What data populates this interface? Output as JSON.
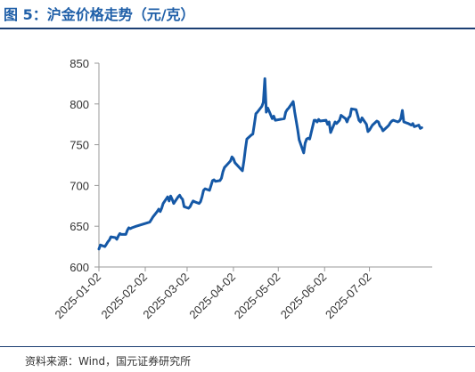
{
  "header": {
    "title": "图 5：沪金价格走势（元/克）"
  },
  "footer": {
    "source": "资料来源：Wind，国元证券研究所"
  },
  "colors": {
    "title": "#1f5fa8",
    "line": "#1558a6",
    "rule": "#1c3f73",
    "axis": "#999999"
  },
  "chart_data": {
    "type": "line",
    "title": "",
    "xlabel": "",
    "ylabel": "",
    "ylim": [
      600,
      850
    ],
    "yticks": [
      600,
      650,
      700,
      750,
      800,
      850
    ],
    "xlim": [
      "2025-01-02",
      "2025-08-13"
    ],
    "xticks": [
      "2025-01-02",
      "2025-02-02",
      "2025-03-02",
      "2025-04-02",
      "2025-05-02",
      "2025-06-02",
      "2025-07-02"
    ],
    "grid": false,
    "legend": "none",
    "series": [
      {
        "values": [
          [
            "2025-01-02",
            622
          ],
          [
            "2025-01-03",
            627
          ],
          [
            "2025-01-06",
            625
          ],
          [
            "2025-01-07",
            628
          ],
          [
            "2025-01-08",
            631
          ],
          [
            "2025-01-09",
            633
          ],
          [
            "2025-01-10",
            637
          ],
          [
            "2025-01-13",
            636
          ],
          [
            "2025-01-14",
            634
          ],
          [
            "2025-01-15",
            638
          ],
          [
            "2025-01-16",
            641
          ],
          [
            "2025-01-17",
            640
          ],
          [
            "2025-01-20",
            640
          ],
          [
            "2025-01-21",
            645
          ],
          [
            "2025-01-22",
            648
          ],
          [
            "2025-01-23",
            647
          ],
          [
            "2025-01-24",
            648
          ],
          [
            "2025-01-27",
            650
          ],
          [
            "2025-02-05",
            655
          ],
          [
            "2025-02-06",
            658
          ],
          [
            "2025-02-07",
            661
          ],
          [
            "2025-02-10",
            668
          ],
          [
            "2025-02-11",
            671
          ],
          [
            "2025-02-12",
            668
          ],
          [
            "2025-02-13",
            672
          ],
          [
            "2025-02-14",
            678
          ],
          [
            "2025-02-17",
            686
          ],
          [
            "2025-02-18",
            681
          ],
          [
            "2025-02-19",
            687
          ],
          [
            "2025-02-20",
            683
          ],
          [
            "2025-02-21",
            678
          ],
          [
            "2025-02-24",
            686
          ],
          [
            "2025-02-25",
            688
          ],
          [
            "2025-02-26",
            685
          ],
          [
            "2025-02-27",
            683
          ],
          [
            "2025-02-28",
            674
          ],
          [
            "2025-03-03",
            672
          ],
          [
            "2025-03-04",
            674
          ],
          [
            "2025-03-05",
            678
          ],
          [
            "2025-03-06",
            681
          ],
          [
            "2025-03-07",
            680
          ],
          [
            "2025-03-10",
            678
          ],
          [
            "2025-03-11",
            680
          ],
          [
            "2025-03-12",
            686
          ],
          [
            "2025-03-13",
            694
          ],
          [
            "2025-03-14",
            696
          ],
          [
            "2025-03-17",
            694
          ],
          [
            "2025-03-18",
            700
          ],
          [
            "2025-03-19",
            706
          ],
          [
            "2025-03-20",
            707
          ],
          [
            "2025-03-21",
            705
          ],
          [
            "2025-03-24",
            706
          ],
          [
            "2025-03-25",
            709
          ],
          [
            "2025-03-26",
            717
          ],
          [
            "2025-03-27",
            722
          ],
          [
            "2025-03-28",
            724
          ],
          [
            "2025-03-31",
            730
          ],
          [
            "2025-04-01",
            735
          ],
          [
            "2025-04-02",
            733
          ],
          [
            "2025-04-03",
            728
          ],
          [
            "2025-04-07",
            720
          ],
          [
            "2025-04-08",
            718
          ],
          [
            "2025-04-09",
            730
          ],
          [
            "2025-04-10",
            745
          ],
          [
            "2025-04-11",
            757
          ],
          [
            "2025-04-14",
            762
          ],
          [
            "2025-04-15",
            763
          ],
          [
            "2025-04-16",
            775
          ],
          [
            "2025-04-17",
            788
          ],
          [
            "2025-04-18",
            790
          ],
          [
            "2025-04-21",
            797
          ],
          [
            "2025-04-22",
            802
          ],
          [
            "2025-04-23",
            831
          ],
          [
            "2025-04-24",
            790
          ],
          [
            "2025-04-25",
            795
          ],
          [
            "2025-04-28",
            782
          ],
          [
            "2025-04-29",
            785
          ],
          [
            "2025-04-30",
            780
          ],
          [
            "2025-05-06",
            782
          ],
          [
            "2025-05-07",
            790
          ],
          [
            "2025-05-08",
            793
          ],
          [
            "2025-05-09",
            795
          ],
          [
            "2025-05-12",
            803
          ],
          [
            "2025-05-13",
            790
          ],
          [
            "2025-05-14",
            779
          ],
          [
            "2025-05-15",
            768
          ],
          [
            "2025-05-16",
            756
          ],
          [
            "2025-05-19",
            740
          ],
          [
            "2025-05-20",
            752
          ],
          [
            "2025-05-21",
            757
          ],
          [
            "2025-05-22",
            758
          ],
          [
            "2025-05-23",
            757
          ],
          [
            "2025-05-26",
            780
          ],
          [
            "2025-05-27",
            780
          ],
          [
            "2025-05-28",
            778
          ],
          [
            "2025-05-29",
            781
          ],
          [
            "2025-05-30",
            779
          ],
          [
            "2025-06-03",
            780
          ],
          [
            "2025-06-04",
            775
          ],
          [
            "2025-06-05",
            778
          ],
          [
            "2025-06-06",
            765
          ],
          [
            "2025-06-09",
            778
          ],
          [
            "2025-06-10",
            776
          ],
          [
            "2025-06-11",
            778
          ],
          [
            "2025-06-12",
            780
          ],
          [
            "2025-06-13",
            786
          ],
          [
            "2025-06-16",
            782
          ],
          [
            "2025-06-17",
            778
          ],
          [
            "2025-06-18",
            783
          ],
          [
            "2025-06-19",
            785
          ],
          [
            "2025-06-20",
            794
          ],
          [
            "2025-06-23",
            793
          ],
          [
            "2025-06-24",
            787
          ],
          [
            "2025-06-25",
            780
          ],
          [
            "2025-06-26",
            778
          ],
          [
            "2025-06-27",
            783
          ],
          [
            "2025-06-30",
            775
          ],
          [
            "2025-07-01",
            766
          ],
          [
            "2025-07-02",
            768
          ],
          [
            "2025-07-03",
            771
          ],
          [
            "2025-07-04",
            774
          ],
          [
            "2025-07-07",
            779
          ],
          [
            "2025-07-08",
            778
          ],
          [
            "2025-07-09",
            773
          ],
          [
            "2025-07-10",
            771
          ],
          [
            "2025-07-11",
            767
          ],
          [
            "2025-07-14",
            772
          ],
          [
            "2025-07-15",
            774
          ],
          [
            "2025-07-16",
            777
          ],
          [
            "2025-07-17",
            779
          ],
          [
            "2025-07-18",
            780
          ],
          [
            "2025-07-21",
            778
          ],
          [
            "2025-07-22",
            779
          ],
          [
            "2025-07-23",
            782
          ],
          [
            "2025-07-24",
            792
          ],
          [
            "2025-07-25",
            778
          ],
          [
            "2025-07-28",
            776
          ],
          [
            "2025-07-29",
            775
          ],
          [
            "2025-07-30",
            774
          ],
          [
            "2025-07-31",
            776
          ],
          [
            "2025-08-01",
            772
          ],
          [
            "2025-08-04",
            774
          ],
          [
            "2025-08-05",
            770
          ],
          [
            "2025-08-06",
            771
          ]
        ]
      }
    ]
  }
}
